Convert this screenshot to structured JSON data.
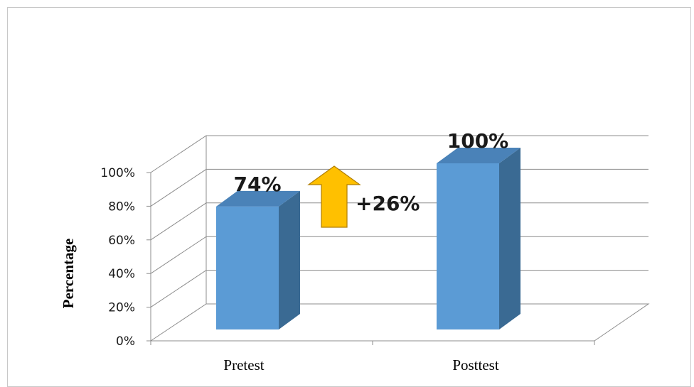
{
  "chart_data": {
    "type": "bar",
    "categories": [
      "Pretest",
      "Posttest"
    ],
    "values": [
      74,
      100
    ],
    "data_labels": [
      "74%",
      "100%"
    ],
    "ylabel": "Percentage",
    "ylim": [
      0,
      100
    ],
    "y_ticks": [
      "0%",
      "20%",
      "40%",
      "60%",
      "80%",
      "100%"
    ],
    "annotation": "+26%",
    "grid": true,
    "style": "3d-column",
    "colors": {
      "bar_front": "#5b9bd5",
      "bar_side": "#3a6a93",
      "bar_top": "#4a82b8",
      "arrow": "#ffc000",
      "arrow_stroke": "#b07d00",
      "grid": "#8c8c8c"
    }
  }
}
